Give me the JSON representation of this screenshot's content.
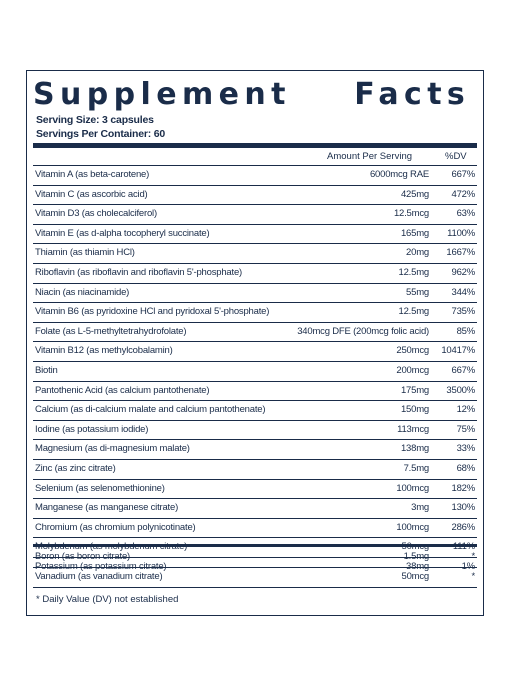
{
  "title": "Supplement    Facts",
  "serving_size": "Serving Size: 3 capsules",
  "servings_per_container": "Servings Per Container: 60",
  "header": {
    "amount": "Amount Per Serving",
    "dv": "%DV"
  },
  "nutrients": [
    {
      "name": "Vitamin A (as beta-carotene)",
      "amount": "6000mcg RAE",
      "dv": "667%"
    },
    {
      "name": "Vitamin C (as ascorbic acid)",
      "amount": "425mg",
      "dv": "472%"
    },
    {
      "name": "Vitamin D3 (as cholecalciferol)",
      "amount": "12.5mcg",
      "dv": "63%"
    },
    {
      "name": "Vitamin E (as d-alpha tocopheryl succinate)",
      "amount": "165mg",
      "dv": "1100%"
    },
    {
      "name": "Thiamin (as thiamin HCl)",
      "amount": "20mg",
      "dv": "1667%"
    },
    {
      "name": "Riboflavin (as riboflavin and riboflavin 5'-phosphate)",
      "amount": "12.5mg",
      "dv": "962%"
    },
    {
      "name": "Niacin (as niacinamide)",
      "amount": "55mg",
      "dv": "344%"
    },
    {
      "name": "Vitamin B6 (as pyridoxine HCl and pyridoxal 5'-phosphate)",
      "amount": "12.5mg",
      "dv": "735%"
    },
    {
      "name": "Folate (as L-5-methyltetrahydrofolate)",
      "amount": "340mcg DFE (200mcg folic acid)",
      "dv": "85%"
    },
    {
      "name": "Vitamin B12 (as methylcobalamin)",
      "amount": "250mcg",
      "dv": "10417%"
    },
    {
      "name": "Biotin",
      "amount": "200mcg",
      "dv": "667%"
    },
    {
      "name": "Pantothenic Acid (as calcium pantothenate)",
      "amount": "175mg",
      "dv": "3500%"
    },
    {
      "name": "Calcium (as di-calcium malate and calcium pantothenate)",
      "amount": "150mg",
      "dv": "12%"
    },
    {
      "name": "Iodine (as potassium iodide)",
      "amount": "113mcg",
      "dv": "75%"
    },
    {
      "name": "Magnesium (as di-magnesium malate)",
      "amount": "138mg",
      "dv": "33%"
    },
    {
      "name": "Zinc (as zinc citrate)",
      "amount": "7.5mg",
      "dv": "68%"
    },
    {
      "name": "Selenium (as selenomethionine)",
      "amount": "100mcg",
      "dv": "182%"
    },
    {
      "name": "Manganese (as manganese citrate)",
      "amount": "3mg",
      "dv": "130%"
    },
    {
      "name": "Chromium (as chromium polynicotinate)",
      "amount": "100mcg",
      "dv": "286%"
    },
    {
      "name": "Molybdenum (as molybdenum citrate)",
      "amount": "50mcg",
      "dv": "111%"
    },
    {
      "name": "Potassium (as potassium citrate)",
      "amount": "38mg",
      "dv": "1%"
    }
  ],
  "other": [
    {
      "name": "Boron (as boron citrate)",
      "amount": "1.5mg",
      "dv": "*"
    },
    {
      "name": "Vanadium (as vanadium citrate)",
      "amount": "50mcg",
      "dv": "*"
    }
  ],
  "footnote": "* Daily Value (DV) not established",
  "colors": {
    "ink": "#1a2c49",
    "background": "#ffffff"
  }
}
